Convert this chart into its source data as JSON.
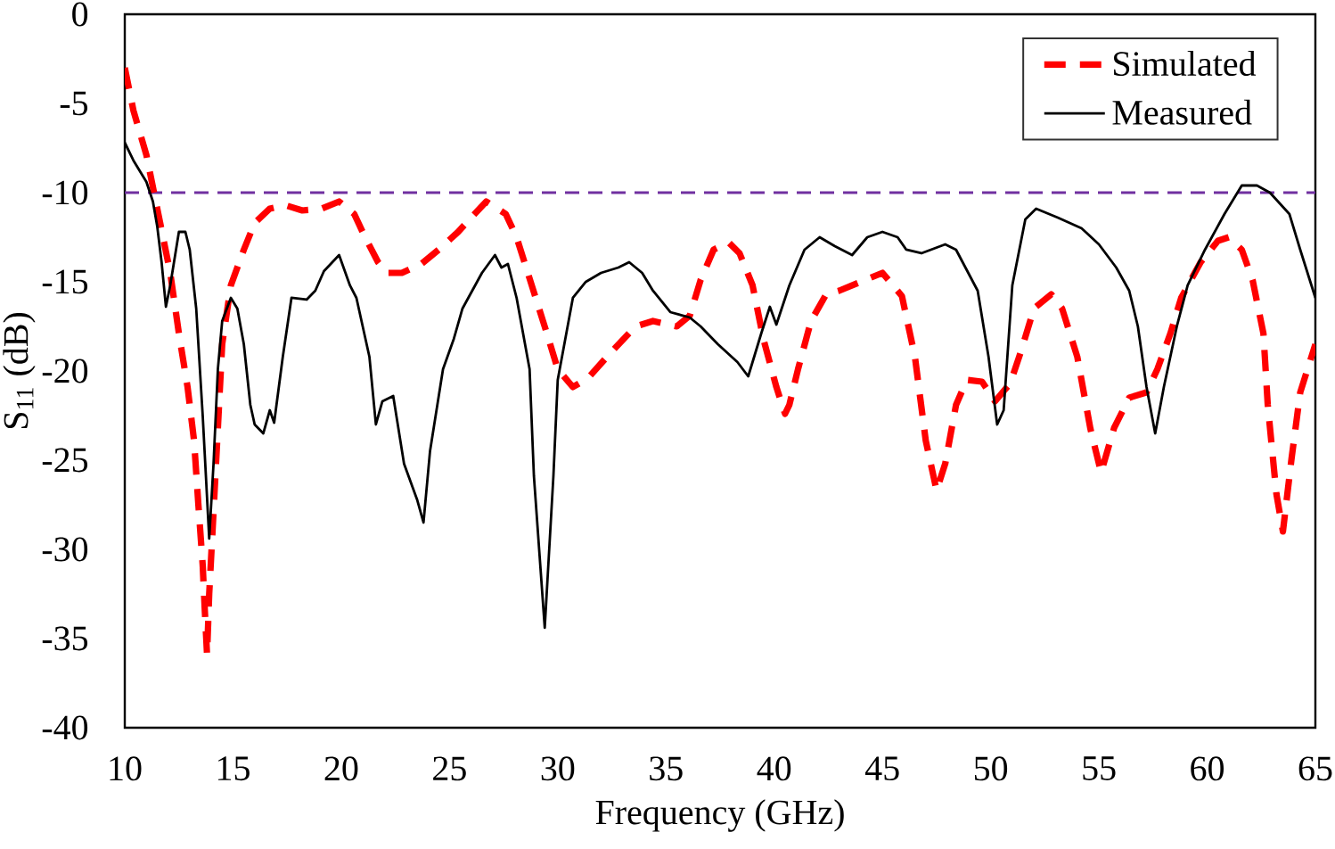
{
  "chart_data": {
    "type": "line",
    "xlabel": "Frequency (GHz)",
    "ylabel": "S$_{11}$ (dB)",
    "xlim": [
      10,
      65
    ],
    "ylim": [
      -40,
      0
    ],
    "xticks": [
      10,
      15,
      20,
      25,
      30,
      35,
      40,
      45,
      50,
      55,
      60,
      65
    ],
    "yticks": [
      -40,
      -35,
      -30,
      -25,
      -20,
      -15,
      -10,
      -5,
      0
    ],
    "legend": "top right",
    "marker": "none",
    "series": [
      {
        "name": "Simulated",
        "color": "#ff0000",
        "line_style": "dashed",
        "x": [
          10.0,
          10.4,
          11.0,
          11.5,
          12.1,
          12.5,
          12.9,
          13.2,
          13.4,
          13.6,
          13.7,
          13.8,
          13.9,
          14.1,
          14.3,
          14.5,
          14.9,
          15.5,
          16.0,
          16.7,
          17.4,
          18.2,
          19.1,
          19.9,
          20.6,
          21.1,
          21.7,
          22.1,
          22.8,
          23.7,
          24.5,
          25.4,
          26.0,
          26.7,
          27.6,
          28.1,
          28.8,
          29.5,
          30.0,
          30.7,
          31.4,
          32.5,
          33.6,
          34.4,
          35.5,
          36.1,
          36.6,
          37.2,
          37.9,
          38.4,
          39.0,
          39.5,
          40.1,
          40.5,
          40.7,
          41.1,
          41.7,
          42.4,
          43.0,
          44.0,
          45.0,
          45.9,
          46.5,
          47.0,
          47.5,
          47.9,
          48.4,
          48.9,
          49.6,
          50.2,
          50.9,
          51.4,
          52.0,
          52.8,
          53.3,
          54.0,
          54.6,
          55.1,
          55.7,
          56.4,
          57.2,
          57.7,
          58.3,
          58.8,
          59.7,
          60.5,
          61.0,
          61.6,
          62.1,
          62.6,
          62.8,
          63.2,
          63.5,
          63.9,
          64.3,
          65.0
        ],
        "values": [
          -3.0,
          -5.4,
          -7.9,
          -10.9,
          -14.5,
          -17.9,
          -20.9,
          -23.9,
          -27.5,
          -30.9,
          -33.5,
          -35.9,
          -32.5,
          -27.9,
          -23.2,
          -18.5,
          -15.2,
          -13.2,
          -11.7,
          -10.9,
          -10.7,
          -11.0,
          -10.9,
          -10.5,
          -11.2,
          -12.5,
          -13.9,
          -14.5,
          -14.5,
          -14.0,
          -13.2,
          -12.2,
          -11.4,
          -10.5,
          -11.2,
          -12.5,
          -15.2,
          -17.9,
          -19.9,
          -20.9,
          -20.4,
          -18.9,
          -17.5,
          -17.2,
          -17.5,
          -16.9,
          -14.9,
          -13.2,
          -12.8,
          -13.4,
          -15.2,
          -18.2,
          -20.9,
          -22.4,
          -21.9,
          -19.9,
          -17.2,
          -15.7,
          -15.5,
          -15.0,
          -14.5,
          -15.8,
          -19.2,
          -23.9,
          -26.7,
          -25.2,
          -21.9,
          -20.5,
          -20.6,
          -21.7,
          -20.7,
          -18.9,
          -16.5,
          -15.7,
          -16.5,
          -19.2,
          -23.2,
          -25.7,
          -23.2,
          -21.5,
          -21.2,
          -19.9,
          -17.9,
          -15.9,
          -13.9,
          -12.7,
          -12.5,
          -13.2,
          -14.9,
          -17.9,
          -21.9,
          -26.9,
          -29.0,
          -24.9,
          -21.2,
          -18.5
        ]
      },
      {
        "name": "Measured",
        "color": "#000000",
        "line_style": "solid",
        "x": [
          10.0,
          10.4,
          11.0,
          11.3,
          11.5,
          11.7,
          11.9,
          12.1,
          12.5,
          12.8,
          13.0,
          13.3,
          13.6,
          13.9,
          14.1,
          14.3,
          14.5,
          14.9,
          15.2,
          15.5,
          15.8,
          16.0,
          16.4,
          16.7,
          16.9,
          17.3,
          17.7,
          18.4,
          18.8,
          19.2,
          19.9,
          20.4,
          20.7,
          21.3,
          21.6,
          21.9,
          22.4,
          22.9,
          23.5,
          23.8,
          24.1,
          24.7,
          25.2,
          25.6,
          26.5,
          27.1,
          27.4,
          27.7,
          28.1,
          28.7,
          28.9,
          29.4,
          29.8,
          30.0,
          30.7,
          31.3,
          32.0,
          32.8,
          33.3,
          33.9,
          34.4,
          35.2,
          36.1,
          36.6,
          37.4,
          38.3,
          38.8,
          39.4,
          39.8,
          40.1,
          40.7,
          41.4,
          42.1,
          42.8,
          43.6,
          44.3,
          45.0,
          45.7,
          46.1,
          46.8,
          47.9,
          48.4,
          49.4,
          49.9,
          50.3,
          50.6,
          51.0,
          51.6,
          52.1,
          53.1,
          54.2,
          55.0,
          55.8,
          56.4,
          56.8,
          57.2,
          57.6,
          58.0,
          58.6,
          59.1,
          59.9,
          60.8,
          61.6,
          62.3,
          62.9,
          63.8,
          64.3,
          65.0
        ],
        "values": [
          -7.2,
          -8.2,
          -9.4,
          -10.5,
          -11.9,
          -13.9,
          -16.4,
          -15.2,
          -12.2,
          -12.2,
          -13.2,
          -16.5,
          -22.5,
          -29.4,
          -25.2,
          -19.9,
          -17.2,
          -15.9,
          -16.5,
          -18.5,
          -21.9,
          -23.0,
          -23.5,
          -22.2,
          -22.9,
          -19.2,
          -15.9,
          -16.0,
          -15.5,
          -14.4,
          -13.5,
          -15.2,
          -15.9,
          -19.2,
          -23.0,
          -21.7,
          -21.4,
          -25.2,
          -27.2,
          -28.5,
          -24.5,
          -19.9,
          -18.2,
          -16.5,
          -14.5,
          -13.5,
          -14.2,
          -14.0,
          -15.9,
          -19.9,
          -25.9,
          -34.4,
          -25.9,
          -20.5,
          -15.9,
          -15.0,
          -14.5,
          -14.2,
          -13.9,
          -14.5,
          -15.5,
          -16.7,
          -17.0,
          -17.5,
          -18.5,
          -19.5,
          -20.3,
          -17.9,
          -16.4,
          -17.4,
          -15.2,
          -13.2,
          -12.5,
          -13.0,
          -13.5,
          -12.5,
          -12.2,
          -12.5,
          -13.2,
          -13.4,
          -12.9,
          -13.2,
          -15.5,
          -19.2,
          -23.0,
          -22.2,
          -15.2,
          -11.5,
          -10.9,
          -11.4,
          -12.0,
          -12.9,
          -14.2,
          -15.5,
          -17.5,
          -20.9,
          -23.5,
          -20.9,
          -17.5,
          -15.2,
          -13.2,
          -11.2,
          -9.6,
          -9.6,
          -10.0,
          -11.2,
          -13.2,
          -15.9
        ]
      }
    ],
    "ref_lines": [
      {
        "axis": "y",
        "value": -10,
        "color": "#7030a0",
        "line_style": "dashed"
      }
    ]
  }
}
